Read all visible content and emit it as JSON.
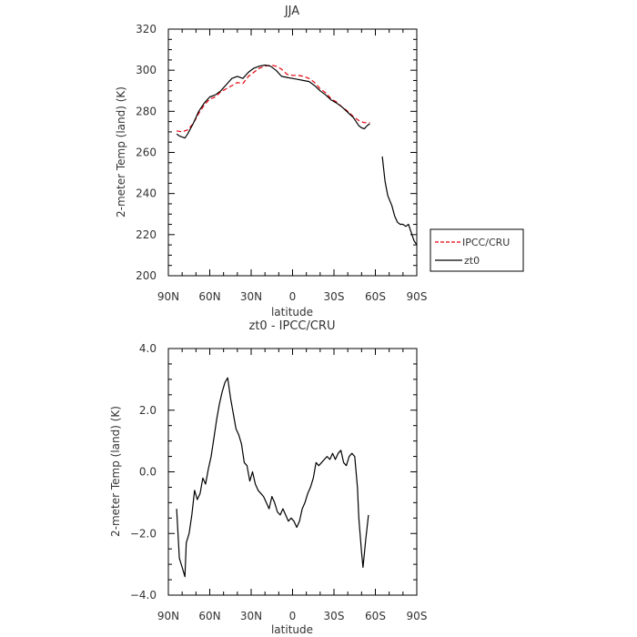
{
  "chart_data": [
    {
      "type": "line",
      "title": "JJA",
      "xlabel": "latitude",
      "ylabel": "2-meter Temp (land) (K)",
      "xlim": [
        90,
        -90
      ],
      "ylim": [
        200,
        320
      ],
      "xticks": [
        90,
        60,
        30,
        0,
        -30,
        -60,
        -90
      ],
      "xtick_labels": [
        "90N",
        "60N",
        "30N",
        "0",
        "30S",
        "60S",
        "90S"
      ],
      "yticks": [
        200,
        220,
        240,
        260,
        280,
        300,
        320
      ],
      "ytick_labels": [
        "200",
        "220",
        "240",
        "260",
        "280",
        "300",
        "320"
      ],
      "legend": {
        "placement": "right-bottom-outside"
      },
      "series": [
        {
          "name": "IPCC/CRU",
          "color": "#e8000b",
          "dash": "dashed",
          "x": [
            84,
            80,
            76,
            72,
            68,
            64,
            60,
            56,
            52,
            48,
            44,
            40,
            36,
            32,
            28,
            24,
            20,
            16,
            12,
            8,
            4,
            0,
            -4,
            -8,
            -12,
            -16,
            -20,
            -24,
            -28,
            -32,
            -36,
            -40,
            -44,
            -48,
            -52,
            -56
          ],
          "y": [
            270.5,
            270,
            271,
            274,
            279,
            283,
            286,
            287,
            289.5,
            291,
            292.5,
            294,
            293.5,
            297,
            299,
            301,
            302,
            302.5,
            302,
            300.5,
            298,
            297.5,
            297.5,
            297,
            296,
            294,
            291,
            289,
            286,
            284.5,
            282,
            280,
            277.5,
            275.5,
            274.5,
            274.5
          ]
        },
        {
          "name": "zt0",
          "color": "#000000",
          "dash": "solid",
          "x": [
            84,
            82,
            80,
            78,
            76,
            72,
            68,
            64,
            60,
            56,
            52,
            48,
            44,
            40,
            36,
            32,
            28,
            24,
            20,
            16,
            12,
            8,
            4,
            0,
            -4,
            -8,
            -12,
            -16,
            -20,
            -24,
            -28,
            -32,
            -36,
            -40,
            -44,
            -48,
            -50,
            -52,
            -54,
            -56
          ],
          "y": [
            269,
            268,
            267.5,
            267,
            269,
            274,
            280,
            284,
            287,
            288,
            290,
            293,
            296,
            297,
            296,
            299,
            301,
            302,
            302.5,
            302,
            300,
            297,
            296.5,
            296,
            295.5,
            295,
            294.5,
            292.5,
            290,
            288,
            285.5,
            284,
            282,
            279.5,
            277,
            273,
            272,
            271.5,
            273,
            274
          ],
          "x2": [
            -65,
            -67,
            -69,
            -72,
            -74,
            -76,
            -78,
            -80,
            -82,
            -84,
            -86,
            -88,
            -90
          ],
          "y2": [
            258,
            246,
            239,
            234,
            229,
            226,
            225,
            225,
            224,
            225,
            221,
            217,
            215
          ]
        }
      ]
    },
    {
      "type": "line",
      "title": "zt0 - IPCC/CRU",
      "xlabel": "latitude",
      "ylabel": "2-meter Temp (land) (K)",
      "xlim": [
        90,
        -90
      ],
      "ylim": [
        -4.0,
        4.0
      ],
      "xticks": [
        90,
        60,
        30,
        0,
        -30,
        -60,
        -90
      ],
      "xtick_labels": [
        "90N",
        "60N",
        "30N",
        "0",
        "30S",
        "60S",
        "90S"
      ],
      "yticks": [
        -4.0,
        -2.0,
        0.0,
        2.0,
        4.0
      ],
      "ytick_labels": [
        "−4.0",
        "−2.0",
        "0.0",
        "2.0",
        "4.0"
      ],
      "series": [
        {
          "color": "#000000",
          "x": [
            84,
            82,
            80,
            78,
            77,
            75,
            73,
            71,
            69,
            67,
            65,
            63,
            61,
            59,
            57,
            55,
            53,
            51,
            49,
            47,
            45,
            43,
            41,
            39,
            37,
            35,
            33,
            31,
            29,
            27,
            25,
            23,
            21,
            19,
            17,
            15,
            13,
            11,
            9,
            7,
            5,
            3,
            1,
            -1,
            -3,
            -5,
            -7,
            -9,
            -11,
            -13,
            -15,
            -17,
            -19,
            -21,
            -23,
            -25,
            -27,
            -29,
            -31,
            -33,
            -35,
            -37,
            -39,
            -41,
            -43,
            -45,
            -47,
            -48,
            -50,
            -51,
            -53,
            -55
          ],
          "y": [
            -1.2,
            -2.8,
            -3.1,
            -3.4,
            -2.3,
            -2.0,
            -1.4,
            -0.6,
            -0.9,
            -0.7,
            -0.2,
            -0.4,
            0.1,
            0.5,
            1.1,
            1.7,
            2.2,
            2.6,
            2.9,
            3.05,
            2.4,
            1.9,
            1.4,
            1.2,
            0.9,
            0.3,
            0.2,
            -0.3,
            0.0,
            -0.4,
            -0.6,
            -0.7,
            -0.8,
            -1.0,
            -1.2,
            -0.8,
            -1.0,
            -1.3,
            -1.4,
            -1.2,
            -1.4,
            -1.6,
            -1.5,
            -1.6,
            -1.8,
            -1.6,
            -1.2,
            -1.0,
            -0.7,
            -0.5,
            -0.2,
            0.3,
            0.2,
            0.3,
            0.4,
            0.5,
            0.4,
            0.6,
            0.4,
            0.6,
            0.7,
            0.3,
            0.2,
            0.5,
            0.6,
            0.5,
            -0.5,
            -1.5,
            -2.6,
            -3.1,
            -2.2,
            -1.4
          ]
        }
      ]
    }
  ]
}
